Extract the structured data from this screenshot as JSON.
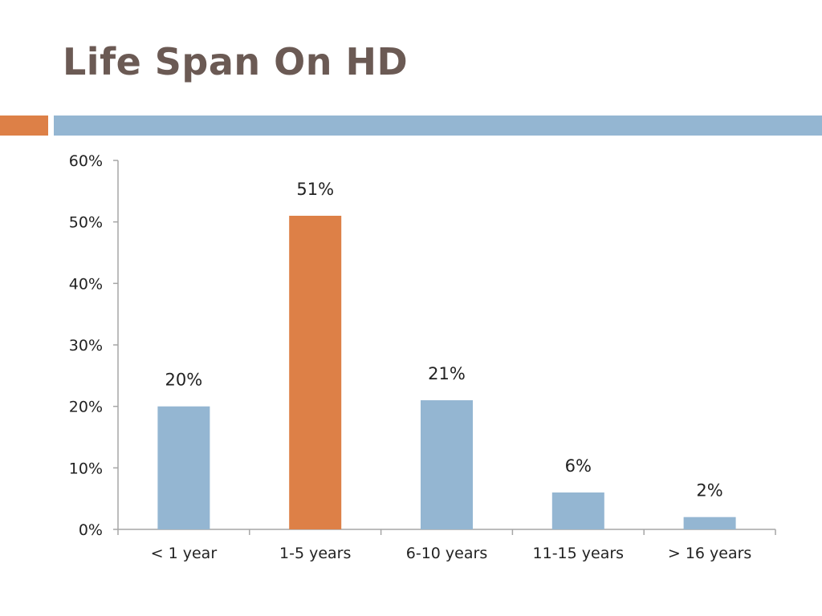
{
  "slide": {
    "title": "Life Span On HD"
  },
  "colors": {
    "title": "#6b5a54",
    "accent_orange": "#dd8047",
    "accent_blue": "#94b6d2",
    "bar_default": "#94b6d2",
    "bar_highlight": "#dd8047",
    "axis": "#a6a6a6"
  },
  "chart_data": {
    "type": "bar",
    "title": "",
    "xlabel": "",
    "ylabel": "",
    "categories": [
      "< 1 year",
      "1-5 years",
      "6-10 years",
      "11-15 years",
      "> 16 years"
    ],
    "values": [
      20,
      51,
      21,
      6,
      2
    ],
    "data_labels": [
      "20%",
      "51%",
      "21%",
      "6%",
      "2%"
    ],
    "highlight_index": 1,
    "ylim": [
      0,
      60
    ],
    "yticks": [
      0,
      10,
      20,
      30,
      40,
      50,
      60
    ],
    "ytick_labels": [
      "0%",
      "10%",
      "20%",
      "30%",
      "40%",
      "50%",
      "60%"
    ],
    "grid": false,
    "legend": "none"
  }
}
